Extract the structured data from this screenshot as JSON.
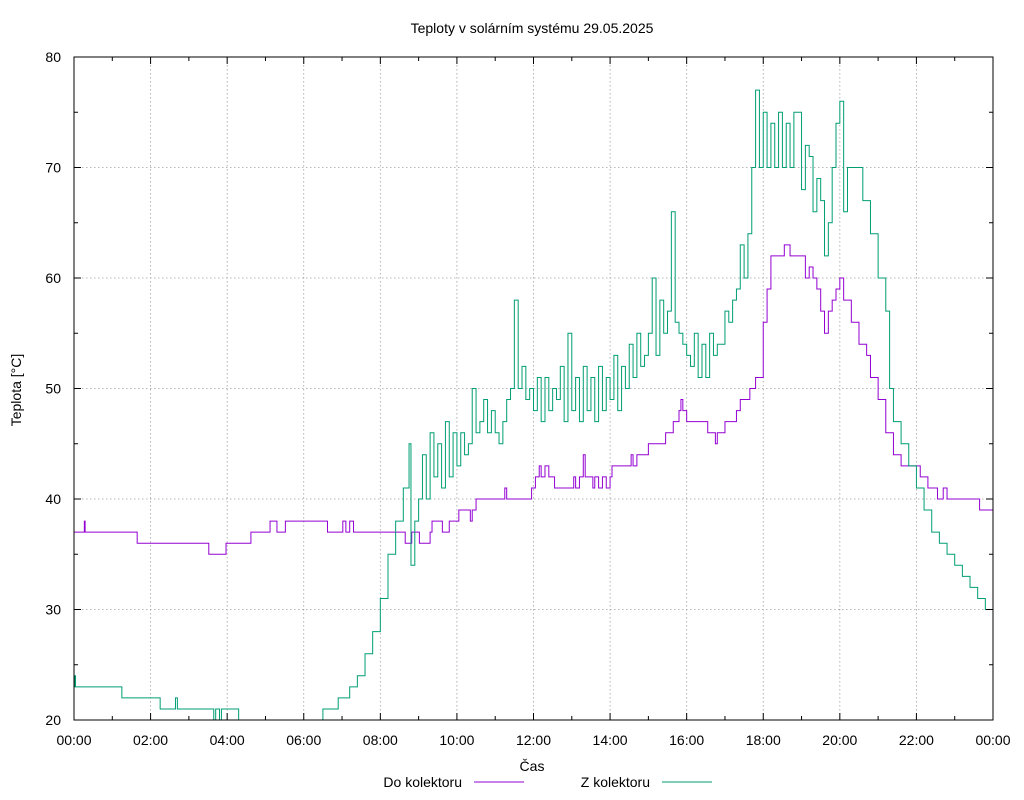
{
  "chart_data": {
    "type": "line",
    "title": "Teploty v solárním systému 29.05.2025",
    "xlabel": "Čas",
    "ylabel": "Teplota [°C]",
    "xlim": [
      0,
      24
    ],
    "ylim": [
      20,
      80
    ],
    "x_ticks": [
      {
        "value": 0,
        "label": "00:00"
      },
      {
        "value": 2,
        "label": "02:00"
      },
      {
        "value": 4,
        "label": "04:00"
      },
      {
        "value": 6,
        "label": "06:00"
      },
      {
        "value": 8,
        "label": "08:00"
      },
      {
        "value": 10,
        "label": "10:00"
      },
      {
        "value": 12,
        "label": "12:00"
      },
      {
        "value": 14,
        "label": "14:00"
      },
      {
        "value": 16,
        "label": "16:00"
      },
      {
        "value": 18,
        "label": "18:00"
      },
      {
        "value": 20,
        "label": "20:00"
      },
      {
        "value": 22,
        "label": "22:00"
      },
      {
        "value": 24,
        "label": "00:00"
      }
    ],
    "y_ticks": [
      {
        "value": 20,
        "label": "20"
      },
      {
        "value": 30,
        "label": "30"
      },
      {
        "value": 40,
        "label": "40"
      },
      {
        "value": 50,
        "label": "50"
      },
      {
        "value": 60,
        "label": "60"
      },
      {
        "value": 70,
        "label": "70"
      },
      {
        "value": 80,
        "label": "80"
      }
    ],
    "grid": true,
    "legend_position": "bottom",
    "series": [
      {
        "name": "Do kolektoru",
        "color": "#9400d3",
        "points": [
          [
            0,
            37
          ],
          [
            0.25,
            37
          ],
          [
            0.27,
            38
          ],
          [
            0.29,
            37
          ],
          [
            1.6,
            37
          ],
          [
            1.65,
            36
          ],
          [
            3.5,
            36
          ],
          [
            3.52,
            35
          ],
          [
            3.95,
            35
          ],
          [
            3.97,
            36
          ],
          [
            4.6,
            36
          ],
          [
            4.62,
            37
          ],
          [
            5.1,
            37
          ],
          [
            5.12,
            38
          ],
          [
            5.3,
            37
          ],
          [
            5.5,
            37
          ],
          [
            5.52,
            38
          ],
          [
            6.6,
            38
          ],
          [
            6.62,
            37
          ],
          [
            7.0,
            37
          ],
          [
            7.02,
            38
          ],
          [
            7.1,
            37
          ],
          [
            7.2,
            38
          ],
          [
            7.3,
            37
          ],
          [
            8.6,
            37
          ],
          [
            8.65,
            36
          ],
          [
            8.8,
            36
          ],
          [
            8.82,
            37
          ],
          [
            9.0,
            37
          ],
          [
            9.02,
            36
          ],
          [
            9.3,
            37
          ],
          [
            9.35,
            38
          ],
          [
            9.6,
            38
          ],
          [
            9.62,
            37
          ],
          [
            9.8,
            38
          ],
          [
            10.0,
            38
          ],
          [
            10.05,
            39
          ],
          [
            10.3,
            39
          ],
          [
            10.35,
            38
          ],
          [
            10.4,
            39
          ],
          [
            10.5,
            40
          ],
          [
            11.2,
            40
          ],
          [
            11.25,
            41
          ],
          [
            11.3,
            40
          ],
          [
            11.9,
            40
          ],
          [
            11.95,
            41
          ],
          [
            12.0,
            41
          ],
          [
            12.05,
            42
          ],
          [
            12.15,
            43
          ],
          [
            12.2,
            42
          ],
          [
            12.3,
            43
          ],
          [
            12.4,
            42
          ],
          [
            12.5,
            42
          ],
          [
            12.55,
            41
          ],
          [
            13.0,
            41
          ],
          [
            13.05,
            42
          ],
          [
            13.1,
            41
          ],
          [
            13.2,
            42
          ],
          [
            13.3,
            44
          ],
          [
            13.35,
            42
          ],
          [
            13.5,
            42
          ],
          [
            13.55,
            41
          ],
          [
            13.6,
            42
          ],
          [
            13.7,
            41
          ],
          [
            13.8,
            42
          ],
          [
            13.9,
            41
          ],
          [
            14.0,
            42
          ],
          [
            14.05,
            43
          ],
          [
            14.5,
            43
          ],
          [
            14.55,
            44
          ],
          [
            14.6,
            43
          ],
          [
            14.7,
            44
          ],
          [
            14.9,
            44
          ],
          [
            15.0,
            45
          ],
          [
            15.4,
            45
          ],
          [
            15.45,
            46
          ],
          [
            15.6,
            46
          ],
          [
            15.65,
            47
          ],
          [
            15.8,
            48
          ],
          [
            15.85,
            49
          ],
          [
            15.9,
            48
          ],
          [
            16.0,
            47
          ],
          [
            16.5,
            47
          ],
          [
            16.55,
            46
          ],
          [
            16.7,
            46
          ],
          [
            16.75,
            45
          ],
          [
            16.8,
            46
          ],
          [
            16.9,
            46
          ],
          [
            17.0,
            47
          ],
          [
            17.3,
            48
          ],
          [
            17.4,
            49
          ],
          [
            17.6,
            49
          ],
          [
            17.65,
            50
          ],
          [
            17.8,
            51
          ],
          [
            18.0,
            56
          ],
          [
            18.1,
            59
          ],
          [
            18.2,
            62
          ],
          [
            18.5,
            62
          ],
          [
            18.55,
            63
          ],
          [
            18.7,
            62
          ],
          [
            19.0,
            62
          ],
          [
            19.1,
            60
          ],
          [
            19.2,
            61
          ],
          [
            19.3,
            60
          ],
          [
            19.4,
            59
          ],
          [
            19.5,
            57
          ],
          [
            19.6,
            55
          ],
          [
            19.7,
            57
          ],
          [
            19.8,
            58
          ],
          [
            19.9,
            59
          ],
          [
            20.0,
            60
          ],
          [
            20.1,
            58
          ],
          [
            20.3,
            56
          ],
          [
            20.5,
            54
          ],
          [
            20.7,
            53
          ],
          [
            20.8,
            51
          ],
          [
            21.0,
            49
          ],
          [
            21.2,
            46
          ],
          [
            21.4,
            44
          ],
          [
            21.5,
            44
          ],
          [
            21.6,
            43
          ],
          [
            22.0,
            43
          ],
          [
            22.1,
            42
          ],
          [
            22.3,
            41
          ],
          [
            22.5,
            41
          ],
          [
            22.55,
            40
          ],
          [
            22.7,
            41
          ],
          [
            22.8,
            40
          ],
          [
            23.6,
            40
          ],
          [
            23.65,
            39
          ],
          [
            24.0,
            39
          ]
        ]
      },
      {
        "name": "Z kolektoru",
        "color": "#009e73",
        "points": [
          [
            0,
            23
          ],
          [
            0.02,
            24
          ],
          [
            0.04,
            23
          ],
          [
            1.2,
            23
          ],
          [
            1.25,
            22
          ],
          [
            2.2,
            22
          ],
          [
            2.25,
            21
          ],
          [
            2.6,
            21
          ],
          [
            2.65,
            22
          ],
          [
            2.7,
            21
          ],
          [
            3.6,
            21
          ],
          [
            3.65,
            20
          ],
          [
            3.7,
            21
          ],
          [
            3.8,
            20
          ],
          [
            3.85,
            21
          ],
          [
            4.2,
            21
          ],
          [
            4.3,
            20
          ],
          [
            6.4,
            20
          ],
          [
            6.5,
            21
          ],
          [
            6.8,
            21
          ],
          [
            6.9,
            22
          ],
          [
            7.1,
            22
          ],
          [
            7.2,
            23
          ],
          [
            7.4,
            24
          ],
          [
            7.6,
            26
          ],
          [
            7.8,
            28
          ],
          [
            8.0,
            31
          ],
          [
            8.2,
            35
          ],
          [
            8.4,
            38
          ],
          [
            8.6,
            41
          ],
          [
            8.75,
            45
          ],
          [
            8.8,
            34
          ],
          [
            8.9,
            38
          ],
          [
            9.0,
            40
          ],
          [
            9.1,
            44
          ],
          [
            9.2,
            40
          ],
          [
            9.3,
            46
          ],
          [
            9.4,
            42
          ],
          [
            9.5,
            45
          ],
          [
            9.6,
            41
          ],
          [
            9.7,
            47
          ],
          [
            9.8,
            42
          ],
          [
            9.9,
            46
          ],
          [
            10.0,
            43
          ],
          [
            10.1,
            46
          ],
          [
            10.2,
            44
          ],
          [
            10.3,
            45
          ],
          [
            10.4,
            50
          ],
          [
            10.5,
            46
          ],
          [
            10.6,
            47
          ],
          [
            10.7,
            49
          ],
          [
            10.8,
            46
          ],
          [
            10.9,
            48
          ],
          [
            11.0,
            46
          ],
          [
            11.1,
            45
          ],
          [
            11.2,
            47
          ],
          [
            11.3,
            49
          ],
          [
            11.4,
            50
          ],
          [
            11.5,
            58
          ],
          [
            11.6,
            50
          ],
          [
            11.7,
            52
          ],
          [
            11.8,
            49
          ],
          [
            11.9,
            50
          ],
          [
            12.0,
            48
          ],
          [
            12.1,
            51
          ],
          [
            12.2,
            47
          ],
          [
            12.3,
            51
          ],
          [
            12.4,
            48
          ],
          [
            12.5,
            50
          ],
          [
            12.6,
            49
          ],
          [
            12.7,
            52
          ],
          [
            12.8,
            47
          ],
          [
            12.9,
            55
          ],
          [
            13.0,
            48
          ],
          [
            13.1,
            51
          ],
          [
            13.2,
            47
          ],
          [
            13.3,
            52
          ],
          [
            13.4,
            48
          ],
          [
            13.5,
            51
          ],
          [
            13.6,
            47
          ],
          [
            13.7,
            52
          ],
          [
            13.8,
            48
          ],
          [
            13.9,
            51
          ],
          [
            14.0,
            49
          ],
          [
            14.1,
            53
          ],
          [
            14.2,
            48
          ],
          [
            14.3,
            52
          ],
          [
            14.4,
            50
          ],
          [
            14.5,
            54
          ],
          [
            14.6,
            51
          ],
          [
            14.7,
            55
          ],
          [
            14.8,
            52
          ],
          [
            14.9,
            53
          ],
          [
            15.0,
            55
          ],
          [
            15.1,
            60
          ],
          [
            15.2,
            53
          ],
          [
            15.3,
            58
          ],
          [
            15.4,
            55
          ],
          [
            15.5,
            57
          ],
          [
            15.6,
            66
          ],
          [
            15.7,
            56
          ],
          [
            15.8,
            55
          ],
          [
            15.9,
            54
          ],
          [
            16.0,
            53
          ],
          [
            16.1,
            52
          ],
          [
            16.2,
            55
          ],
          [
            16.3,
            51
          ],
          [
            16.4,
            54
          ],
          [
            16.5,
            51
          ],
          [
            16.6,
            55
          ],
          [
            16.7,
            53
          ],
          [
            16.8,
            54
          ],
          [
            17.0,
            57
          ],
          [
            17.1,
            56
          ],
          [
            17.2,
            58
          ],
          [
            17.3,
            59
          ],
          [
            17.4,
            63
          ],
          [
            17.5,
            60
          ],
          [
            17.6,
            64
          ],
          [
            17.7,
            70
          ],
          [
            17.8,
            77
          ],
          [
            17.9,
            70
          ],
          [
            18.0,
            75
          ],
          [
            18.1,
            70
          ],
          [
            18.2,
            74
          ],
          [
            18.3,
            70
          ],
          [
            18.4,
            75
          ],
          [
            18.5,
            70
          ],
          [
            18.6,
            74
          ],
          [
            18.7,
            70
          ],
          [
            18.8,
            75
          ],
          [
            19.0,
            68
          ],
          [
            19.1,
            72
          ],
          [
            19.2,
            71
          ],
          [
            19.3,
            66
          ],
          [
            19.4,
            69
          ],
          [
            19.5,
            67
          ],
          [
            19.6,
            62
          ],
          [
            19.7,
            65
          ],
          [
            19.8,
            70
          ],
          [
            19.9,
            74
          ],
          [
            20.0,
            76
          ],
          [
            20.1,
            66
          ],
          [
            20.2,
            70
          ],
          [
            20.4,
            70
          ],
          [
            20.6,
            67
          ],
          [
            20.8,
            64
          ],
          [
            21.0,
            60
          ],
          [
            21.2,
            57
          ],
          [
            21.3,
            50
          ],
          [
            21.4,
            47
          ],
          [
            21.6,
            45
          ],
          [
            21.8,
            43
          ],
          [
            22.0,
            41
          ],
          [
            22.2,
            39
          ],
          [
            22.4,
            37
          ],
          [
            22.6,
            36
          ],
          [
            22.8,
            35
          ],
          [
            23.0,
            34
          ],
          [
            23.2,
            33
          ],
          [
            23.4,
            32
          ],
          [
            23.6,
            31
          ],
          [
            23.8,
            30
          ],
          [
            24.0,
            30
          ]
        ]
      }
    ]
  }
}
